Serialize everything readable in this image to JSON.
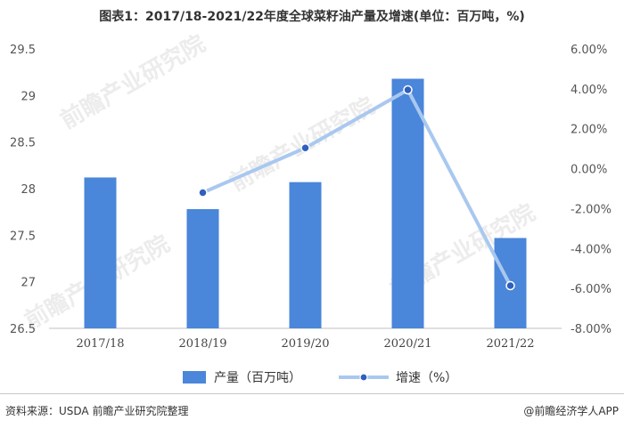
{
  "title": "图表1：2017/18-2021/22年度全球菜籽油产量及增速(单位：百万吨，%)",
  "source": "资料来源：USDA 前瞻产业研究院整理",
  "brand": "@前瞻经济学人APP",
  "watermark": "前瞻产业研究院",
  "colors": {
    "bar": "#4a86d9",
    "line": "#a9c8ef",
    "marker": "#2f5fbf",
    "axis": "#bfbfbf"
  },
  "chart_data": {
    "type": "bar",
    "title": "图表1：2017/18-2021/22年度全球菜籽油产量及增速(单位：百万吨，%)",
    "categories": [
      "2017/18",
      "2018/19",
      "2019/20",
      "2020/21",
      "2021/22"
    ],
    "series": [
      {
        "name": "产量（百万吨）",
        "type": "bar",
        "axis": "left",
        "values": [
          28.12,
          27.78,
          28.07,
          29.18,
          27.47
        ]
      },
      {
        "name": "增速（%）",
        "type": "line",
        "axis": "right",
        "values": [
          null,
          -1.2,
          1.04,
          3.95,
          -5.86
        ]
      }
    ],
    "y_left": {
      "min": 26.5,
      "max": 29.5,
      "step": 0.5,
      "ticks": [
        "26.5",
        "27",
        "27.5",
        "28",
        "28.5",
        "29",
        "29.5"
      ]
    },
    "y_right": {
      "min": -8,
      "max": 6,
      "step": 2,
      "ticks": [
        "-8.00%",
        "-6.00%",
        "-4.00%",
        "-2.00%",
        "0.00%",
        "2.00%",
        "4.00%",
        "6.00%"
      ]
    },
    "legend": {
      "position": "bottom"
    },
    "grid": false
  }
}
